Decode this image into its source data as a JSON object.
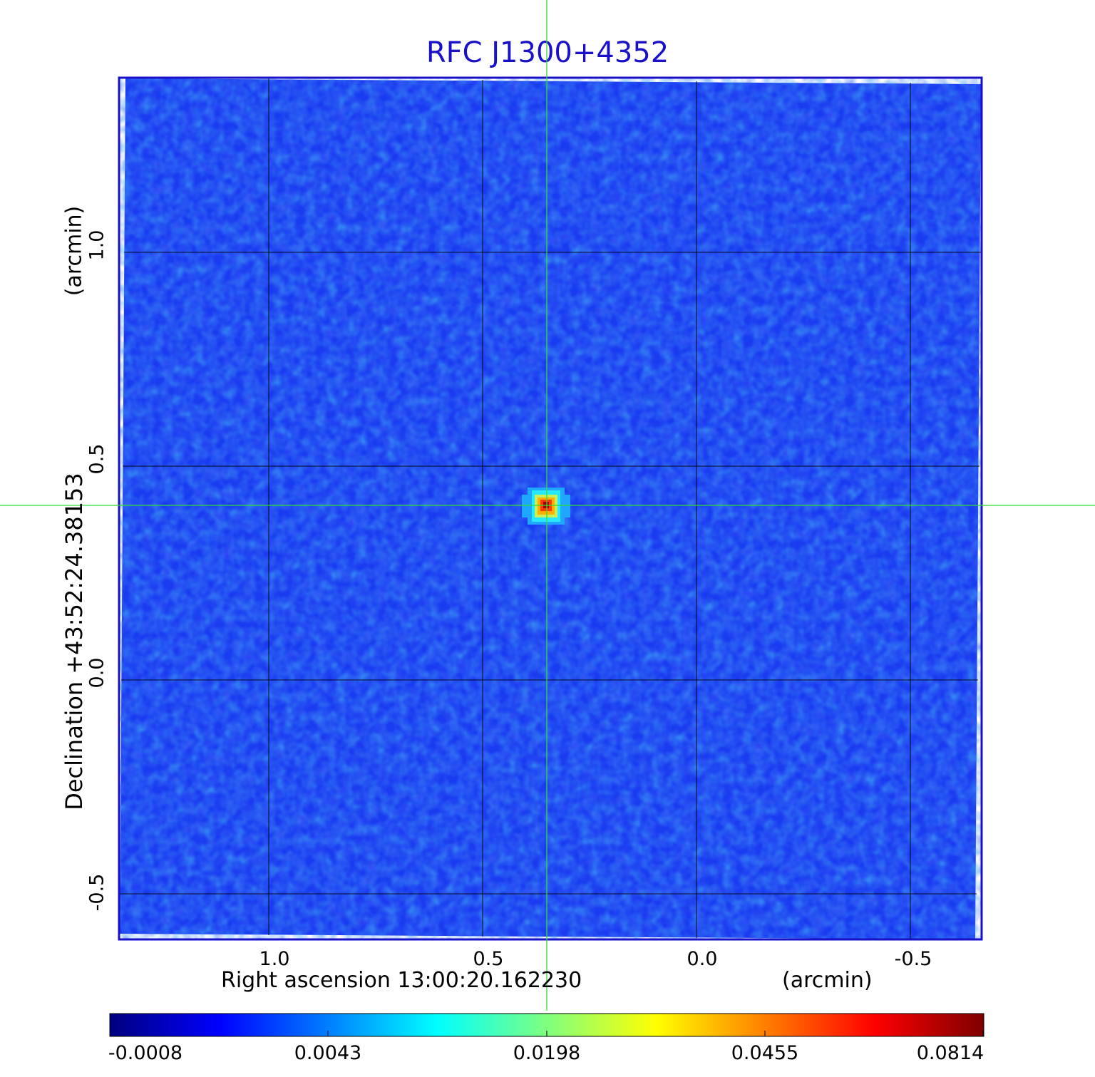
{
  "title": "RFC J1300+4352",
  "x_axis": {
    "title": "Right ascension  13:00:20.162230",
    "unit": "(arcmin)",
    "ticks": [
      "1.0",
      "0.5",
      "0.0",
      "-0.5"
    ]
  },
  "y_axis": {
    "title": "Declination  +43:52:24.38153",
    "unit": "(arcmin)",
    "ticks": [
      "1.0",
      "0.5",
      "0.0",
      "-0.5"
    ]
  },
  "colorbar": {
    "ticks": [
      "-0.0008",
      "0.0043",
      "0.0198",
      "0.0455",
      "0.0814"
    ],
    "colormap": [
      "#00007f",
      "#0000ff",
      "#007fff",
      "#00ffff",
      "#7fff7f",
      "#ffff00",
      "#ff7f00",
      "#ff0000",
      "#7f0000"
    ]
  },
  "colors": {
    "title": "#1a10c8",
    "frame": "#1a10c8",
    "background_field": "#1a3cf0",
    "crosshair": "#33dd33",
    "grid": "#000000"
  }
}
